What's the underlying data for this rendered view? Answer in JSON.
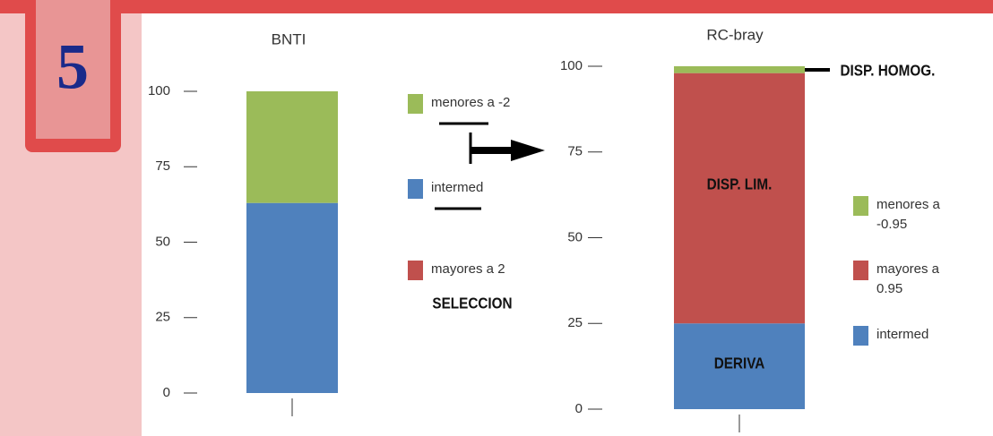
{
  "badge": "5",
  "chart_data": [
    {
      "type": "stacked_bar",
      "title": "BNTI",
      "ylim": [
        0,
        100
      ],
      "yticks": [
        0,
        25,
        50,
        75,
        100
      ],
      "series": [
        {
          "name": "menores a -2",
          "color": "#9bbb59",
          "values": [
            37
          ]
        },
        {
          "name": "intermed",
          "color": "#4f81bd",
          "values": [
            63
          ]
        },
        {
          "name": "mayores a 2",
          "color": "#c0504d",
          "values": [
            0
          ]
        }
      ],
      "annotations": [
        "SELECCION"
      ]
    },
    {
      "type": "stacked_bar",
      "title": "RC-bray",
      "ylim": [
        0,
        100
      ],
      "yticks": [
        0,
        25,
        50,
        75,
        100
      ],
      "series": [
        {
          "name": "menores a -0.95",
          "color": "#9bbb59",
          "values": [
            2
          ]
        },
        {
          "name": "mayores a 0.95",
          "color": "#c0504d",
          "values": [
            73
          ]
        },
        {
          "name": "intermed",
          "color": "#4f81bd",
          "values": [
            25
          ]
        }
      ],
      "annotations": [
        "DISP. LIM.",
        "DERIVA",
        "DISP. HOMOG."
      ]
    }
  ]
}
